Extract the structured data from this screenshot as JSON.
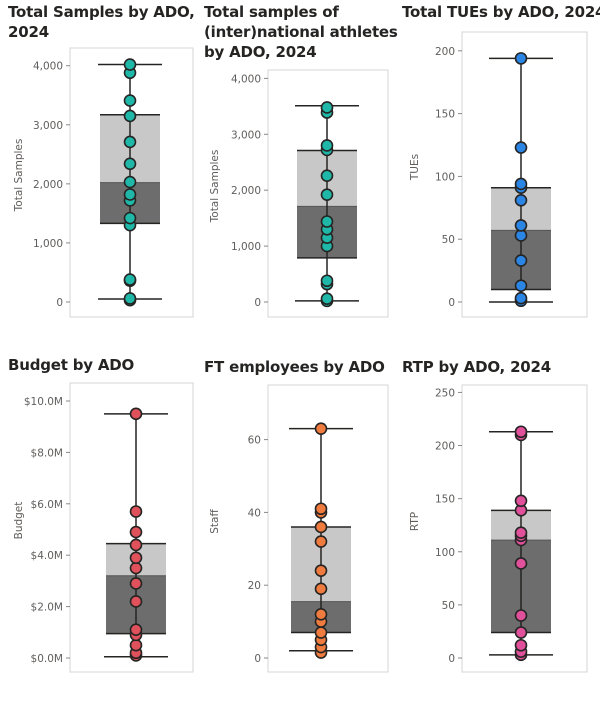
{
  "chart_data": [
    {
      "type": "box",
      "title_lines": [
        "Total Samples by ADO,",
        "2024"
      ],
      "ylabel": "Total Samples",
      "ylim": [
        0,
        4300
      ],
      "ticks": [
        0,
        1000,
        2000,
        3000,
        4000
      ],
      "tick_labels": [
        "0",
        "1,000",
        "2,000",
        "3,000",
        "4,000"
      ],
      "box": {
        "min": 50,
        "q1": 1330,
        "median": 2020,
        "q3": 3170,
        "max": 4020
      },
      "points": [
        30,
        60,
        360,
        380,
        1300,
        1420,
        1720,
        1820,
        2030,
        2340,
        2710,
        3150,
        3410,
        3880,
        4020
      ],
      "dot_color": "#1fb8a8"
    },
    {
      "type": "box",
      "title_lines": [
        "Total samples of",
        "(inter)national athletes",
        "by ADO, 2024"
      ],
      "ylabel": "Total Samples",
      "ylim": [
        0,
        4150
      ],
      "ticks": [
        0,
        1000,
        2000,
        3000,
        4000
      ],
      "tick_labels": [
        "0",
        "1,000",
        "2,000",
        "3,000",
        "4,000"
      ],
      "box": {
        "min": 20,
        "q1": 790,
        "median": 1710,
        "q3": 2710,
        "max": 3510
      },
      "points": [
        20,
        60,
        320,
        380,
        1000,
        1150,
        1300,
        1440,
        1920,
        2260,
        2720,
        2800,
        3390,
        3480
      ],
      "dot_color": "#1fb8a8"
    },
    {
      "type": "box",
      "title_lines": [
        "Total TUEs by ADO, 2024"
      ],
      "ylabel": "TUEs",
      "ylim": [
        0,
        215
      ],
      "ticks": [
        0,
        50,
        100,
        150,
        200
      ],
      "tick_labels": [
        "0",
        "50",
        "100",
        "150",
        "200"
      ],
      "box": {
        "min": 0,
        "q1": 10,
        "median": 57,
        "q3": 91,
        "max": 194
      },
      "points": [
        1,
        3,
        13,
        33,
        53,
        61,
        81,
        91,
        94,
        123,
        194
      ],
      "dot_color": "#2b85e4"
    },
    {
      "type": "box",
      "title_lines": [
        "Budget by ADO"
      ],
      "ylabel": "Budget",
      "ylim": [
        0,
        10.7
      ],
      "ticks": [
        0,
        2,
        4,
        6,
        8,
        10
      ],
      "tick_labels": [
        "$0.0M",
        "$2.0M",
        "$4.0M",
        "$6.0M",
        "$8.0M",
        "$10.0M"
      ],
      "box": {
        "min": 0.05,
        "q1": 0.95,
        "median": 3.2,
        "q3": 4.45,
        "max": 9.5
      },
      "points": [
        0.1,
        0.2,
        0.5,
        0.9,
        1.1,
        2.2,
        2.9,
        3.5,
        3.9,
        4.4,
        4.9,
        5.7,
        9.5
      ],
      "dot_color": "#e0525b"
    },
    {
      "type": "box",
      "title_lines": [
        "FT employees by ADO"
      ],
      "ylabel": "Staff",
      "ylim": [
        0,
        75
      ],
      "ticks": [
        0,
        20,
        40,
        60
      ],
      "tick_labels": [
        "0",
        "20",
        "40",
        "60"
      ],
      "box": {
        "min": 2,
        "q1": 7,
        "median": 15.5,
        "q3": 36,
        "max": 63
      },
      "points": [
        1.5,
        3,
        5,
        7,
        10,
        12,
        19,
        24,
        32,
        36,
        40,
        41,
        63
      ],
      "dot_color": "#f07b3f"
    },
    {
      "type": "box",
      "title_lines": [
        "RTP by ADO, 2024"
      ],
      "ylabel": "RTP",
      "ylim": [
        0,
        257
      ],
      "ticks": [
        0,
        50,
        100,
        150,
        200,
        250
      ],
      "tick_labels": [
        "0",
        "50",
        "100",
        "150",
        "200",
        "250"
      ],
      "box": {
        "min": 3,
        "q1": 24,
        "median": 111,
        "q3": 139,
        "max": 213
      },
      "points": [
        3,
        6,
        12,
        24,
        40,
        89,
        111,
        115,
        118,
        139,
        148,
        210,
        213
      ],
      "dot_color": "#e0509b"
    }
  ],
  "colors": {
    "box_upper": "#c8c8c8",
    "box_lower": "#6d6d6d",
    "whisker": "#252423",
    "dot_stroke": "#252423",
    "frame": "#d4d4d4",
    "tick_text": "#605e5c"
  }
}
